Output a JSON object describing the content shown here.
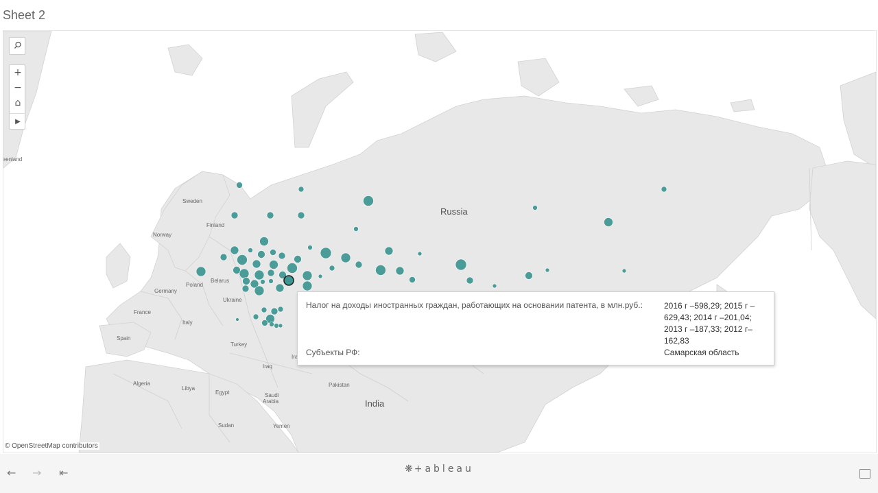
{
  "sheet": {
    "title": "Sheet 2"
  },
  "map": {
    "labels": {
      "russia": "Russia",
      "india": "India",
      "greenland": "reenland",
      "sweden": "Sweden",
      "finland": "Finland",
      "norway": "Norway",
      "poland": "Poland",
      "belarus": "Belarus",
      "germany": "Germany",
      "ukraine": "Ukraine",
      "france": "France",
      "italy": "Italy",
      "spain": "Spain",
      "turkey": "Turkey",
      "iraq": "Iraq",
      "iran": "Iran",
      "algeria": "Algeria",
      "libya": "Libya",
      "egypt": "Egypt",
      "saudi": "Saudi",
      "arabia": "Arabia",
      "sudan": "Sudan",
      "yemen": "Yemen",
      "pakistan": "Pakistan"
    },
    "attribution": "© OpenStreetMap contributors",
    "mark_color": "#3e9692"
  },
  "tooltip": {
    "label1": "Налог на доходы иностранных граждан, работающих на основании патента, в млн.руб.:",
    "value1": "2016 г –598,29;  2015 г –629,43;  2014 г –201,04;  2013 г –187,33;  2012 г–162,83",
    "label2": "Субъекты РФ:",
    "value2": "Самарская область"
  },
  "toolbar": {
    "search_icon": "magnifier-icon",
    "zoom_in": "+",
    "zoom_out": "−",
    "home_icon": "⌂",
    "play_icon": "▶"
  },
  "footer": {
    "back": "←",
    "forward": "→",
    "first": "⇤",
    "logo_icon": "❋",
    "logo_text": "+ableau"
  }
}
